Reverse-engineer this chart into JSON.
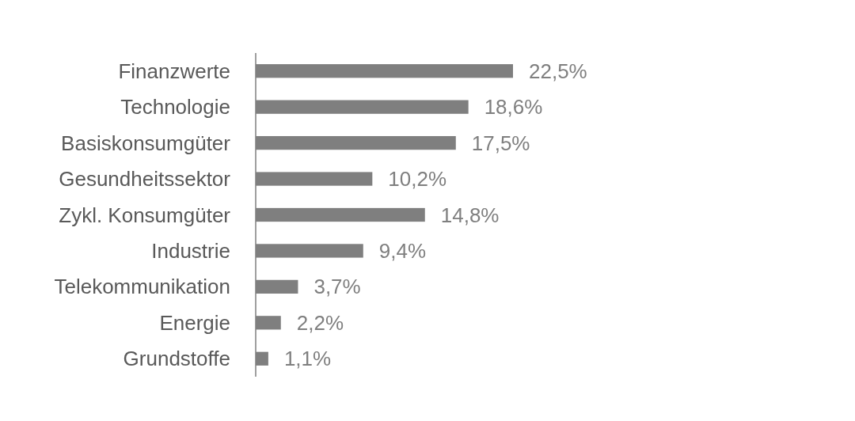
{
  "chart_data": {
    "type": "bar",
    "orientation": "horizontal",
    "categories": [
      "Finanzwerte",
      "Technologie",
      "Basiskonsumgüter",
      "Gesundheitssektor",
      "Zykl. Konsumgüter",
      "Industrie",
      "Telekommunikation",
      "Energie",
      "Grundstoffe"
    ],
    "values": [
      22.5,
      18.6,
      17.5,
      10.2,
      14.8,
      9.4,
      3.7,
      2.2,
      1.1
    ],
    "value_labels": [
      "22,5%",
      "18,6%",
      "17,5%",
      "10,2%",
      "14,8%",
      "9,4%",
      "3,7%",
      "2,2%",
      "1,1%"
    ],
    "color": "#7f7f7f"
  }
}
